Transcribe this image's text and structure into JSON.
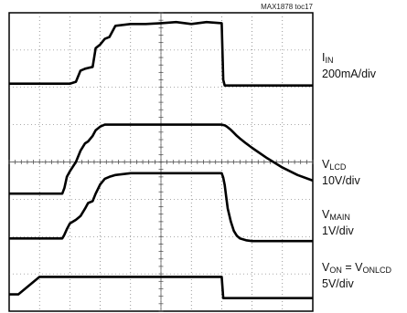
{
  "figure_ref": "MAX1878 toc17",
  "chart_data": {
    "type": "line",
    "title": "",
    "grid": true,
    "divisions": {
      "x": 10,
      "y": 8
    },
    "x": [
      0,
      0.3,
      1.0,
      1.3,
      1.6,
      1.75,
      1.82,
      1.9,
      2.0,
      2.2,
      2.35,
      2.5,
      2.6,
      2.75,
      2.85,
      3.0,
      3.15,
      3.3,
      3.5,
      4.0,
      4.5,
      5.0,
      5.5,
      6.0,
      6.5,
      7.0,
      7.05,
      7.1,
      7.15,
      7.2,
      7.3,
      7.4,
      7.5,
      7.6,
      7.8,
      8.0,
      8.5,
      9.0,
      9.5,
      10.0
    ],
    "series": [
      {
        "name": "I",
        "name_sub": "IN",
        "scale": "200mA/div",
        "values": [
          2.1,
          2.1,
          2.1,
          2.1,
          2.1,
          2.1,
          2.1,
          2.1,
          2.1,
          2.15,
          2.45,
          2.5,
          2.52,
          2.55,
          3.05,
          3.15,
          3.3,
          3.35,
          3.65,
          3.7,
          3.7,
          3.72,
          3.75,
          3.7,
          3.75,
          3.72,
          2.2,
          2.05,
          2.05,
          2.05,
          2.05,
          2.05,
          2.05,
          2.05,
          2.05,
          2.05,
          2.05,
          2.05,
          2.05,
          2.05
        ]
      },
      {
        "name": "V",
        "name_sub": "LCD",
        "scale": "10V/div",
        "values": [
          -0.85,
          -0.85,
          -0.85,
          -0.85,
          -0.85,
          -0.85,
          -0.7,
          -0.4,
          -0.25,
          0.0,
          0.3,
          0.5,
          0.55,
          0.7,
          0.85,
          0.95,
          1.0,
          1.0,
          1.0,
          1.0,
          1.0,
          1.0,
          1.0,
          1.0,
          1.0,
          1.0,
          0.99,
          0.98,
          0.96,
          0.93,
          0.86,
          0.78,
          0.7,
          0.63,
          0.5,
          0.38,
          0.1,
          -0.15,
          -0.35,
          -0.5
        ]
      },
      {
        "name": "V",
        "name_sub": "MAIN",
        "scale": "1V/div",
        "values": [
          -2.05,
          -2.05,
          -2.05,
          -2.05,
          -2.05,
          -2.05,
          -1.95,
          -1.8,
          -1.65,
          -1.55,
          -1.45,
          -1.25,
          -1.1,
          -1.05,
          -0.85,
          -0.6,
          -0.45,
          -0.4,
          -0.35,
          -0.3,
          -0.3,
          -0.3,
          -0.3,
          -0.3,
          -0.3,
          -0.3,
          -0.42,
          -0.62,
          -0.95,
          -1.25,
          -1.6,
          -1.85,
          -1.98,
          -2.05,
          -2.1,
          -2.12,
          -2.12,
          -2.12,
          -2.12,
          -2.12
        ]
      },
      {
        "name": "V",
        "name_sub": "ON",
        "name_suffix": " = V",
        "name_suffix_sub": "ONLCD",
        "scale": "5V/div",
        "values": [
          -3.55,
          -3.55,
          -3.08,
          -3.08,
          -3.08,
          -3.08,
          -3.08,
          -3.08,
          -3.08,
          -3.08,
          -3.08,
          -3.08,
          -3.08,
          -3.08,
          -3.08,
          -3.08,
          -3.08,
          -3.08,
          -3.08,
          -3.08,
          -3.08,
          -3.08,
          -3.08,
          -3.08,
          -3.08,
          -3.08,
          -3.65,
          -3.65,
          -3.65,
          -3.65,
          -3.65,
          -3.65,
          -3.65,
          -3.65,
          -3.65,
          -3.65,
          -3.65,
          -3.65,
          -3.65,
          -3.65
        ]
      }
    ]
  }
}
